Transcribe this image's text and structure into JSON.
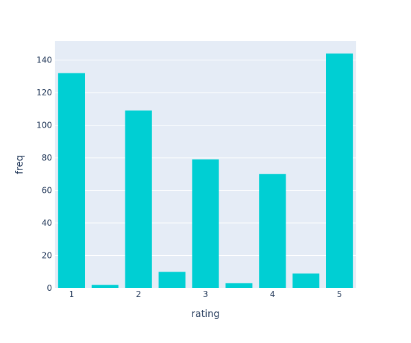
{
  "chart_data": {
    "type": "bar",
    "x": [
      1,
      1.5,
      2,
      2.5,
      3,
      3.5,
      4,
      4.5,
      5
    ],
    "values": [
      132,
      2,
      109,
      10,
      79,
      3,
      70,
      9,
      144
    ],
    "xlabel": "rating",
    "ylabel": "freq",
    "xticks": [
      "1",
      "2",
      "3",
      "4",
      "5"
    ],
    "xtick_values": [
      1,
      2,
      3,
      4,
      5
    ],
    "yticks": [
      "0",
      "20",
      "40",
      "60",
      "80",
      "100",
      "120",
      "140"
    ],
    "ytick_values": [
      0,
      20,
      40,
      60,
      80,
      100,
      120,
      140
    ],
    "xlim": [
      0.75,
      5.25
    ],
    "ylim": [
      0,
      151.6
    ],
    "grid": true,
    "legend": "none",
    "colors": {
      "bar": "#00cfd3",
      "plot_bg": "#e5ecf6",
      "grid": "#ffffff",
      "text": "#2a3f5f"
    }
  }
}
